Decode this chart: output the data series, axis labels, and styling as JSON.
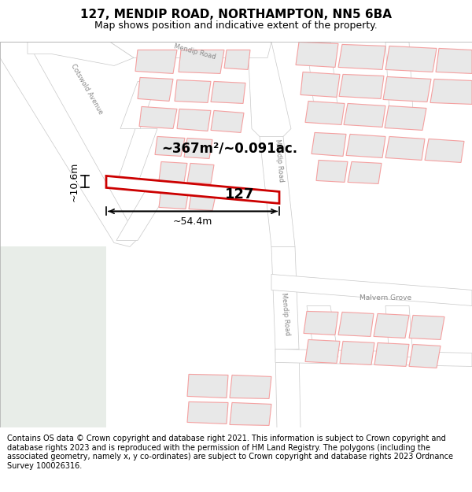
{
  "title": "127, MENDIP ROAD, NORTHAMPTON, NN5 6BA",
  "subtitle": "Map shows position and indicative extent of the property.",
  "footer": "Contains OS data © Crown copyright and database right 2021. This information is subject to Crown copyright and database rights 2023 and is reproduced with the permission of HM Land Registry. The polygons (including the associated geometry, namely x, y co-ordinates) are subject to Crown copyright and database rights 2023 Ordnance Survey 100026316.",
  "map_bg": "#ffffff",
  "road_color": "#ffffff",
  "road_outline": "#c8c8c8",
  "building_outline_color": "#f4a0a0",
  "building_fill_color": "#e8e8e8",
  "highlight_outline": "#cc0000",
  "highlight_fill": "#ffffff",
  "annotation_area": "~367m²/~0.091ac.",
  "annotation_width": "~54.4m",
  "annotation_height": "~10.6m",
  "label_127": "127",
  "green_area": "#e8ede8",
  "road_label_color": "#888888",
  "title_fontsize": 11,
  "subtitle_fontsize": 9,
  "footer_fontsize": 7.0,
  "footer_text_color": "#000000"
}
